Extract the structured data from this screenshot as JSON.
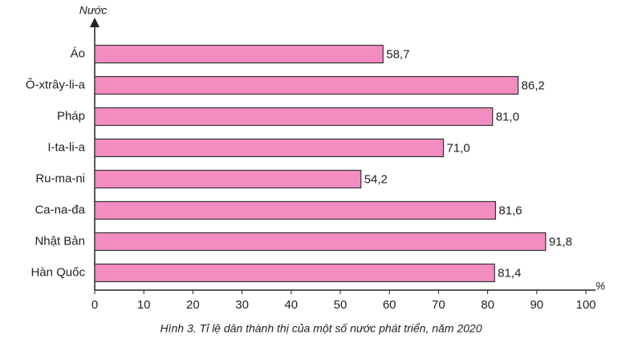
{
  "chart_data": {
    "type": "bar",
    "orientation": "horizontal",
    "title": "Hình 3. Tỉ lệ dân thành thị của một số nước phát triển, năm 2020",
    "y_label": "Nước",
    "x_label": "%",
    "categories": [
      "Áo",
      "Ô-xtrây-li-a",
      "Pháp",
      "I-ta-li-a",
      "Ru-ma-ni",
      "Ca-na-đa",
      "Nhật Bản",
      "Hàn Quốc"
    ],
    "values": [
      58.7,
      86.2,
      81.0,
      71.0,
      54.2,
      81.6,
      91.8,
      81.4
    ],
    "value_labels": [
      "58,7",
      "86,2",
      "81,0",
      "71,0",
      "54,2",
      "81,6",
      "91,8",
      "81,4"
    ],
    "color": "#f28cc1",
    "xlim": [
      0,
      100
    ],
    "xticks": [
      0,
      10,
      20,
      30,
      40,
      50,
      60,
      70,
      80,
      90,
      100
    ]
  }
}
